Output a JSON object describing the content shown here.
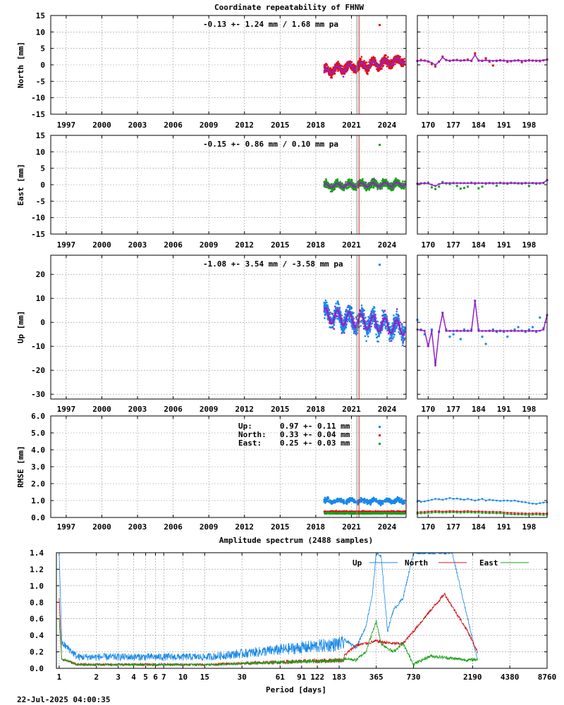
{
  "chart_data": [
    {
      "type": "scatter",
      "title": "Coordinate repeatability of FHNW",
      "ylabel": "North [mm]",
      "ylim": [
        -15,
        15
      ],
      "yticks": [
        -15,
        -10,
        -5,
        0,
        5,
        10,
        15
      ],
      "xticks": [
        "1997",
        "2000",
        "2003",
        "2006",
        "2009",
        "2012",
        "2015",
        "2018",
        "2021",
        "2024"
      ],
      "xlim": [
        1995.7,
        2025.6
      ],
      "stat": "-0.13 +- 1.24 mm /  1.68 mm pa",
      "stat_color": "#e0101a",
      "series_color": "#e0101a",
      "fit_color": "#9420c8",
      "trend": {
        "x": [
          2018.7,
          2025.5
        ],
        "y": [
          -1.9,
          1.5
        ]
      },
      "seasonal_amplitude": 1.0,
      "scatter_amplitude": 1.2,
      "event_x": 2021.55,
      "recent": {
        "xticks": [
          "170",
          "177",
          "184",
          "191",
          "198"
        ],
        "xlim": [
          167,
          203
        ],
        "doy": [
          167,
          168,
          169,
          170,
          171,
          172,
          173,
          174,
          175,
          176,
          177,
          178,
          179,
          180,
          181,
          182,
          183,
          184,
          185,
          186,
          187,
          188,
          189,
          190,
          191,
          192,
          193,
          194,
          195,
          196,
          197,
          198,
          199,
          200,
          201,
          202,
          203
        ],
        "values": [
          1.2,
          1.5,
          1.3,
          1.0,
          0.2,
          -0.5,
          1.0,
          2.5,
          1.5,
          1.2,
          1.4,
          1.5,
          1.3,
          1.4,
          1.6,
          1.2,
          3.5,
          1.3,
          1.2,
          2.0,
          1.0,
          -0.2,
          1.2,
          1.4,
          1.3,
          0.9,
          1.1,
          1.3,
          1.4,
          0.8,
          1.2,
          1.4,
          1.3,
          1.2,
          1.1,
          1.4,
          1.6
        ],
        "fit": [
          1.2,
          1.3,
          1.3,
          1.1,
          0.6,
          0.0,
          0.9,
          2.3,
          1.4,
          1.3,
          1.4,
          1.4,
          1.3,
          1.4,
          1.4,
          1.3,
          3.0,
          1.3,
          1.3,
          1.4,
          1.3,
          1.2,
          1.3,
          1.3,
          1.3,
          1.2,
          1.2,
          1.3,
          1.3,
          1.2,
          1.3,
          1.3,
          1.3,
          1.3,
          1.3,
          1.4,
          1.6
        ]
      }
    },
    {
      "type": "scatter",
      "ylabel": "East [mm]",
      "ylim": [
        -15,
        15
      ],
      "yticks": [
        -15,
        -10,
        -5,
        0,
        5,
        10,
        15
      ],
      "xticks": [
        "1997",
        "2000",
        "2003",
        "2006",
        "2009",
        "2012",
        "2015",
        "2018",
        "2021",
        "2024"
      ],
      "xlim": [
        1995.7,
        2025.6
      ],
      "stat": "-0.15 +- 0.86 mm /  0.10 mm pa",
      "stat_color": "#18a018",
      "series_color": "#18a018",
      "fit_color": "#9420c8",
      "trend": {
        "x": [
          2018.7,
          2025.5
        ],
        "y": [
          -0.3,
          0.2
        ]
      },
      "seasonal_amplitude": 0.6,
      "scatter_amplitude": 1.0,
      "event_x": 2021.55,
      "recent": {
        "xticks": [
          "170",
          "177",
          "184",
          "191",
          "198"
        ],
        "xlim": [
          167,
          203
        ],
        "doy": [
          167,
          168,
          169,
          170,
          171,
          172,
          173,
          174,
          175,
          176,
          177,
          178,
          179,
          180,
          181,
          182,
          183,
          184,
          185,
          186,
          187,
          188,
          189,
          190,
          191,
          192,
          193,
          194,
          195,
          196,
          197,
          198,
          199,
          200,
          201,
          202,
          203
        ],
        "values": [
          0.3,
          0.4,
          0.5,
          0.6,
          -0.8,
          -1.3,
          -0.6,
          0.8,
          0.4,
          0.2,
          0.5,
          -0.4,
          -1.2,
          -1.0,
          -0.6,
          0.6,
          0.3,
          -1.1,
          -0.6,
          0.3,
          0.5,
          0.4,
          -0.3,
          0.6,
          0.4,
          0.3,
          0.6,
          0.5,
          0.4,
          0.3,
          0.5,
          -0.4,
          0.5,
          0.3,
          0.4,
          0.5,
          1.4
        ],
        "fit": [
          0.3,
          0.4,
          0.4,
          0.4,
          0.0,
          -0.4,
          0.2,
          0.5,
          0.5,
          0.5,
          0.5,
          0.5,
          0.5,
          0.5,
          0.5,
          0.5,
          0.5,
          0.5,
          0.5,
          0.5,
          0.5,
          0.5,
          0.5,
          0.5,
          0.5,
          0.5,
          0.5,
          0.5,
          0.5,
          0.5,
          0.5,
          0.5,
          0.5,
          0.5,
          0.5,
          0.6,
          1.4
        ]
      }
    },
    {
      "type": "scatter",
      "ylabel": "Up [mm]",
      "ylim": [
        -32,
        28
      ],
      "yticks": [
        -30,
        -20,
        -10,
        0,
        10,
        20
      ],
      "xticks": [
        "1997",
        "2000",
        "2003",
        "2006",
        "2009",
        "2012",
        "2015",
        "2018",
        "2021",
        "2024"
      ],
      "xlim": [
        1995.7,
        2025.6
      ],
      "stat": "-1.08 +- 3.54 mm / -3.58 mm pa",
      "stat_color": "#1888e8",
      "series_color": "#1888e8",
      "fit_color": "#9420c8",
      "trend": {
        "x": [
          2018.7,
          2025.5
        ],
        "y": [
          3.0,
          -2.5
        ]
      },
      "seasonal_amplitude": 3.0,
      "scatter_amplitude": 3.5,
      "event_x": 2021.55,
      "recent": {
        "xticks": [
          "170",
          "177",
          "184",
          "191",
          "198"
        ],
        "xlim": [
          167,
          203
        ],
        "doy": [
          167,
          168,
          169,
          170,
          171,
          172,
          173,
          174,
          175,
          176,
          177,
          178,
          179,
          180,
          181,
          182,
          183,
          184,
          185,
          186,
          187,
          188,
          189,
          190,
          191,
          192,
          193,
          194,
          195,
          196,
          197,
          198,
          199,
          200,
          201,
          202,
          203
        ],
        "values": [
          1.0,
          -3.0,
          -5.0,
          -9.5,
          -3.0,
          -17.0,
          -4.0,
          4.0,
          -3.0,
          -6.0,
          -5.0,
          -3.5,
          -7.0,
          -3.0,
          -3.5,
          -3.0,
          9.0,
          -3.0,
          -6.0,
          -9.0,
          -3.5,
          -3.0,
          -4.0,
          -3.5,
          -4.0,
          -6.0,
          -3.5,
          -3.0,
          -2.0,
          -3.5,
          -4.0,
          -3.0,
          -2.0,
          -4.0,
          2.0,
          -2.5,
          3.0
        ],
        "fit": [
          -3.0,
          -3.3,
          -3.5,
          -10.0,
          -3.6,
          -18.0,
          -3.8,
          3.8,
          -3.6,
          -3.6,
          -3.6,
          -3.6,
          -3.6,
          -3.6,
          -3.6,
          -3.6,
          9.0,
          -3.6,
          -3.6,
          -3.6,
          -3.6,
          -3.6,
          -3.6,
          -3.6,
          -3.6,
          -3.6,
          -3.6,
          -3.6,
          -3.6,
          -3.6,
          -3.6,
          -3.6,
          -3.6,
          -3.6,
          -3.5,
          -3.0,
          3.0
        ]
      }
    },
    {
      "type": "scatter",
      "ylabel": "RMSE [mm]",
      "ylim": [
        0,
        6
      ],
      "yticks": [
        "0.0",
        "1.0",
        "2.0",
        "3.0",
        "4.0",
        "5.0",
        "6.0"
      ],
      "xticks": [
        "1997",
        "2000",
        "2003",
        "2006",
        "2009",
        "2012",
        "2015",
        "2018",
        "2021",
        "2024"
      ],
      "xlim": [
        1995.7,
        2025.6
      ],
      "event_x": 2021.55,
      "legend": [
        {
          "label": "Up:",
          "value": "0.97 +- 0.11 mm",
          "color": "#1888e8",
          "mean": 0.97,
          "sd": 0.11
        },
        {
          "label": "North:",
          "value": "0.33 +- 0.04 mm",
          "color": "#e0101a",
          "mean": 0.33,
          "sd": 0.04
        },
        {
          "label": "East:",
          "value": "0.25 +- 0.03 mm",
          "color": "#18a018",
          "mean": 0.25,
          "sd": 0.03
        }
      ],
      "recent": {
        "xticks": [
          "170",
          "177",
          "184",
          "191",
          "198"
        ],
        "xlim": [
          167,
          203
        ],
        "up": [
          0.95,
          0.92,
          0.95,
          1.0,
          1.05,
          1.1,
          1.08,
          1.05,
          1.1,
          1.15,
          1.1,
          1.12,
          1.08,
          1.05,
          1.1,
          1.05,
          1.0,
          1.05,
          1.1,
          1.0,
          1.05,
          1.02,
          1.0,
          0.98,
          1.0,
          1.0,
          0.98,
          1.0,
          0.95,
          0.92,
          0.9,
          0.85,
          0.82,
          0.8,
          0.85,
          0.88,
          0.9
        ],
        "north": [
          0.3,
          0.32,
          0.33,
          0.35,
          0.36,
          0.38,
          0.37,
          0.35,
          0.36,
          0.38,
          0.37,
          0.36,
          0.35,
          0.37,
          0.38,
          0.36,
          0.35,
          0.36,
          0.35,
          0.34,
          0.33,
          0.34,
          0.32,
          0.33,
          0.3,
          0.28,
          0.27,
          0.26,
          0.25,
          0.25,
          0.24,
          0.23,
          0.24,
          0.25,
          0.24,
          0.23,
          0.24
        ],
        "east": [
          0.22,
          0.24,
          0.25,
          0.27,
          0.28,
          0.3,
          0.29,
          0.28,
          0.29,
          0.3,
          0.3,
          0.29,
          0.28,
          0.29,
          0.3,
          0.29,
          0.28,
          0.28,
          0.27,
          0.26,
          0.25,
          0.26,
          0.24,
          0.25,
          0.22,
          0.2,
          0.19,
          0.18,
          0.17,
          0.17,
          0.16,
          0.15,
          0.16,
          0.17,
          0.16,
          0.15,
          0.16
        ]
      }
    },
    {
      "type": "line",
      "title": "Amplitude spectrum (2488 samples)",
      "xlabel": "Period [days]",
      "ylim": [
        0,
        1.4
      ],
      "yticks": [
        "0.0",
        "0.2",
        "0.4",
        "0.6",
        "0.8",
        "1.0",
        "1.2",
        "1.4"
      ],
      "xscale": "log",
      "xlim": [
        0.95,
        8760
      ],
      "xticks": [
        "1",
        "2",
        "3",
        "4",
        "5",
        "6",
        "7",
        "10",
        "15",
        "30",
        "61",
        "91",
        "122",
        "183",
        "365",
        "730",
        "2190",
        "4380",
        "8760"
      ],
      "xtick_values": [
        1,
        2,
        3,
        4,
        5,
        6,
        7,
        10,
        15,
        30,
        61,
        91,
        122,
        183,
        365,
        730,
        2190,
        4380,
        8760
      ],
      "series": [
        {
          "name": "Up",
          "color": "#1888e8",
          "base": 0.12,
          "noise": 0.09,
          "peaks": {
            "x": [
              1,
              1.05,
              200,
              250,
              300,
              340,
              365,
              400,
              450,
              500,
              600,
              730,
              1000,
              1500,
              2000,
              2400
            ],
            "y": [
              1.4,
              0.3,
              0.35,
              0.25,
              0.5,
              0.9,
              1.4,
              1.35,
              0.45,
              0.7,
              0.85,
              1.4,
              1.4,
              1.4,
              0.6,
              0.1
            ]
          }
        },
        {
          "name": "North",
          "color": "#d01818",
          "base": 0.04,
          "noise": 0.03,
          "peaks": {
            "x": [
              1,
              1.05,
              200,
              250,
              300,
              365,
              400,
              500,
              600,
              730,
              1000,
              1300,
              2000,
              2400
            ],
            "y": [
              0.85,
              0.1,
              0.15,
              0.28,
              0.3,
              0.33,
              0.32,
              0.3,
              0.3,
              0.45,
              0.7,
              0.9,
              0.45,
              0.2
            ]
          }
        },
        {
          "name": "East",
          "color": "#18a018",
          "base": 0.04,
          "noise": 0.025,
          "peaks": {
            "x": [
              1,
              1.05,
              200,
              250,
              300,
              365,
              400,
              500,
              600,
              730,
              1000,
              2000,
              2400
            ],
            "y": [
              0.6,
              0.08,
              0.12,
              0.1,
              0.2,
              0.57,
              0.3,
              0.2,
              0.3,
              0.05,
              0.15,
              0.1,
              0.11
            ]
          }
        }
      ]
    }
  ],
  "timestamp": "22-Jul-2025 04:00:35"
}
